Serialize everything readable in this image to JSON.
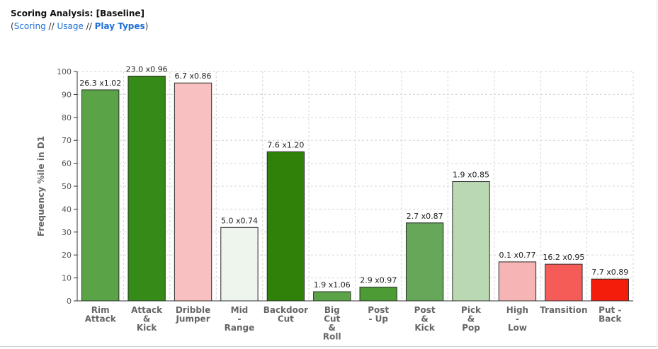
{
  "header": {
    "title": "Scoring Analysis: [Baseline]",
    "nav_open": "(",
    "nav_close": ")",
    "separator": " // ",
    "links": [
      {
        "label": "Scoring",
        "active": false
      },
      {
        "label": "Usage",
        "active": false
      },
      {
        "label": "Play Types",
        "active": true
      }
    ]
  },
  "chart_data": {
    "type": "bar",
    "ylabel": "Frequency %ile in D1",
    "ylim": [
      0,
      100
    ],
    "yticks": [
      0,
      10,
      20,
      30,
      40,
      50,
      60,
      70,
      80,
      90,
      100
    ],
    "grid": true,
    "categories": [
      {
        "lines": [
          "Rim",
          "Attack"
        ],
        "value": 92,
        "label": "26.3 x1.02",
        "color": "#5aa447"
      },
      {
        "lines": [
          "Attack",
          "&",
          "Kick"
        ],
        "value": 98,
        "label": "23.0 x0.96",
        "color": "#368a18"
      },
      {
        "lines": [
          "Dribble",
          "Jumper"
        ],
        "value": 95,
        "label": "6.7 x0.86",
        "color": "#f8c0c0"
      },
      {
        "lines": [
          "Mid",
          "-",
          "Range"
        ],
        "value": 32,
        "label": "5.0 x0.74",
        "color": "#eef5ec"
      },
      {
        "lines": [
          "Backdoor",
          "Cut"
        ],
        "value": 65,
        "label": "7.6 x1.20",
        "color": "#2e8209"
      },
      {
        "lines": [
          "Big",
          "Cut",
          "&",
          "Roll"
        ],
        "value": 4,
        "label": "1.9 x1.06",
        "color": "#5aa447"
      },
      {
        "lines": [
          "Post",
          "- Up"
        ],
        "value": 6,
        "label": "2.9 x0.97",
        "color": "#4d9b35"
      },
      {
        "lines": [
          "Post",
          "&",
          "Kick"
        ],
        "value": 34,
        "label": "2.7 x0.87",
        "color": "#66a75a"
      },
      {
        "lines": [
          "Pick",
          "&",
          "Pop"
        ],
        "value": 52,
        "label": "1.9 x0.85",
        "color": "#bad9b2"
      },
      {
        "lines": [
          "High",
          "-",
          "Low"
        ],
        "value": 17,
        "label": "0.1 x0.77",
        "color": "#f7b4b4"
      },
      {
        "lines": [
          "Transition"
        ],
        "value": 16,
        "label": "16.2 x0.95",
        "color": "#f55c58"
      },
      {
        "lines": [
          "Put -",
          "Back"
        ],
        "value": 9.5,
        "label": "7.7 x0.89",
        "color": "#f41d0c"
      }
    ]
  }
}
